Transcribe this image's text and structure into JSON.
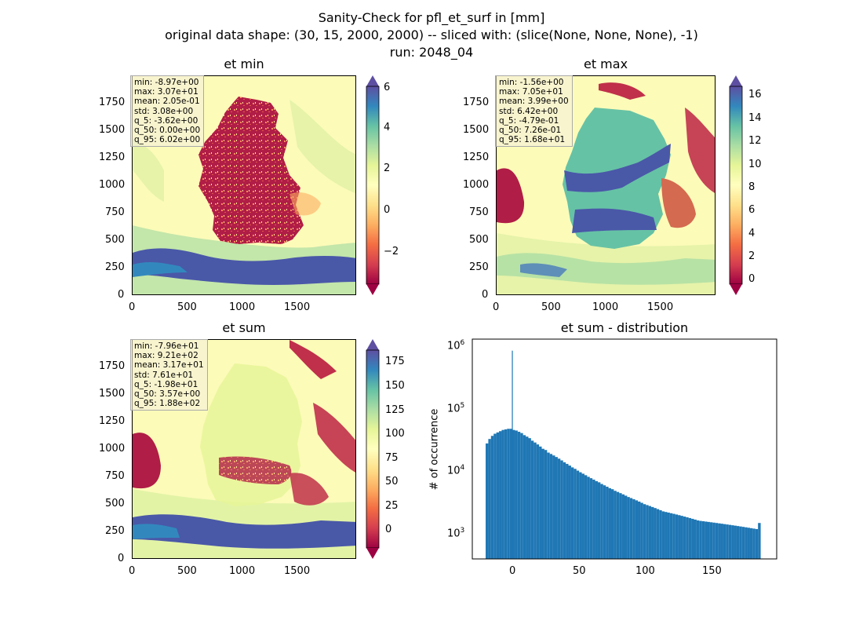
{
  "figure": {
    "suptitle": [
      "Sanity-Check for pfl_et_surf in [mm]",
      "original data shape: (30, 15, 2000, 2000) -- sliced with: (slice(None, None, None), -1)",
      "run: 2048_04"
    ]
  },
  "colors": {
    "spectral_ramp": [
      "#9e0142",
      "#d53e4f",
      "#f46d43",
      "#fdae61",
      "#fee08b",
      "#ffffbf",
      "#e6f598",
      "#abdda4",
      "#66c2a5",
      "#3288bd",
      "#5e4fa2"
    ],
    "histogram_bar": "#1f77b4",
    "ocean_background": "#fcfbb8",
    "land_low": "#b01d46",
    "high_band": "#4a58a8"
  },
  "panels": {
    "et_min": {
      "title": "et min",
      "xticks": [
        "0",
        "500",
        "1000",
        "1500"
      ],
      "yticks": [
        "0",
        "250",
        "500",
        "750",
        "1000",
        "1250",
        "1500",
        "1750"
      ],
      "cbar_ticks": [
        "6",
        "4",
        "2",
        "0",
        "−2"
      ],
      "stats": [
        "min: -8.97e+00",
        "max: 3.07e+01",
        "mean: 2.05e-01",
        "std: 3.08e+00",
        "q_5: -3.62e+00",
        "q_50: 0.00e+00",
        "q_95: 6.02e+00"
      ]
    },
    "et_max": {
      "title": "et max",
      "xticks": [
        "0",
        "500",
        "1000",
        "1500"
      ],
      "yticks": [
        "0",
        "250",
        "500",
        "750",
        "1000",
        "1250",
        "1500",
        "1750"
      ],
      "cbar_ticks": [
        "16",
        "14",
        "12",
        "10",
        "8",
        "6",
        "4",
        "2",
        "0"
      ],
      "stats": [
        "min: -1.56e+00",
        "max: 7.05e+01",
        "mean: 3.99e+00",
        "std: 6.42e+00",
        "q_5: -4.79e-01",
        "q_50: 7.26e-01",
        "q_95: 1.68e+01"
      ]
    },
    "et_sum": {
      "title": "et sum",
      "xticks": [
        "0",
        "500",
        "1000",
        "1500"
      ],
      "yticks": [
        "0",
        "250",
        "500",
        "750",
        "1000",
        "1250",
        "1500",
        "1750"
      ],
      "cbar_ticks": [
        "175",
        "150",
        "125",
        "100",
        "75",
        "50",
        "25",
        "0"
      ],
      "stats": [
        "min: -7.96e+01",
        "max: 9.21e+02",
        "mean: 3.17e+01",
        "std: 7.61e+01",
        "q_5: -1.98e+01",
        "q_50: 3.57e+00",
        "q_95: 1.88e+02"
      ]
    },
    "distribution": {
      "title": "et sum - distribution",
      "ylabel": "# of occurrence",
      "xticks": [
        "0",
        "50",
        "100",
        "150"
      ],
      "yticks": [
        {
          "base": "10",
          "exp": "6"
        },
        {
          "base": "10",
          "exp": "5"
        },
        {
          "base": "10",
          "exp": "4"
        },
        {
          "base": "10",
          "exp": "3"
        }
      ]
    }
  },
  "chart_data": [
    {
      "type": "heatmap",
      "title": "et min",
      "xlim": [
        0,
        2000
      ],
      "ylim": [
        0,
        2000
      ],
      "colorbar_range": [
        -3.62,
        6.02
      ],
      "colorbar_extend": "both",
      "colormap": "Spectral"
    },
    {
      "type": "heatmap",
      "title": "et max",
      "xlim": [
        0,
        2000
      ],
      "ylim": [
        0,
        2000
      ],
      "colorbar_range": [
        -0.479,
        16.8
      ],
      "colorbar_extend": "both",
      "colormap": "Spectral"
    },
    {
      "type": "heatmap",
      "title": "et sum",
      "xlim": [
        0,
        2000
      ],
      "ylim": [
        0,
        2000
      ],
      "colorbar_range": [
        -19.8,
        188
      ],
      "colorbar_extend": "both",
      "colormap": "Spectral"
    },
    {
      "type": "bar",
      "title": "et sum - distribution",
      "ylabel": "# of occurrence",
      "yscale": "log",
      "xlim": [
        -30,
        198
      ],
      "ylim": [
        400,
        1300000
      ],
      "spike": {
        "x": 0,
        "y": 850000
      },
      "x": [
        -19,
        -17,
        -15,
        -13,
        -11,
        -9,
        -7,
        -5,
        -3,
        -1,
        1,
        3,
        5,
        7,
        9,
        11,
        13,
        15,
        17,
        19,
        21,
        23,
        25,
        27,
        29,
        31,
        33,
        35,
        37,
        39,
        41,
        43,
        45,
        47,
        49,
        51,
        53,
        55,
        57,
        59,
        61,
        63,
        65,
        67,
        69,
        71,
        73,
        75,
        77,
        79,
        81,
        83,
        85,
        87,
        89,
        91,
        93,
        95,
        97,
        99,
        101,
        103,
        105,
        107,
        109,
        111,
        113,
        115,
        117,
        119,
        121,
        123,
        125,
        127,
        129,
        131,
        133,
        135,
        137,
        139,
        141,
        143,
        145,
        147,
        149,
        151,
        153,
        155,
        157,
        159,
        161,
        163,
        165,
        167,
        169,
        171,
        173,
        175,
        177,
        179,
        181,
        183,
        185
      ],
      "values": [
        28000,
        33000,
        37000,
        40000,
        42000,
        44000,
        46000,
        47000,
        48000,
        48000,
        46000,
        45000,
        43000,
        41000,
        38000,
        36000,
        34000,
        31000,
        29000,
        27000,
        25000,
        23000,
        22000,
        20000,
        19000,
        18000,
        17000,
        16000,
        15000,
        14000,
        13200,
        12400,
        11600,
        11000,
        10300,
        9700,
        9200,
        8700,
        8200,
        7800,
        7400,
        7000,
        6700,
        6300,
        6000,
        5700,
        5400,
        5200,
        4900,
        4700,
        4500,
        4300,
        4100,
        3900,
        3750,
        3600,
        3450,
        3300,
        3150,
        3000,
        2900,
        2800,
        2700,
        2600,
        2500,
        2400,
        2300,
        2250,
        2200,
        2150,
        2100,
        2050,
        2000,
        1950,
        1900,
        1850,
        1800,
        1750,
        1700,
        1650,
        1620,
        1600,
        1580,
        1560,
        1540,
        1520,
        1500,
        1480,
        1460,
        1440,
        1420,
        1400,
        1380,
        1360,
        1340,
        1320,
        1300,
        1280,
        1260,
        1240,
        1220,
        1200,
        1500
      ]
    }
  ]
}
